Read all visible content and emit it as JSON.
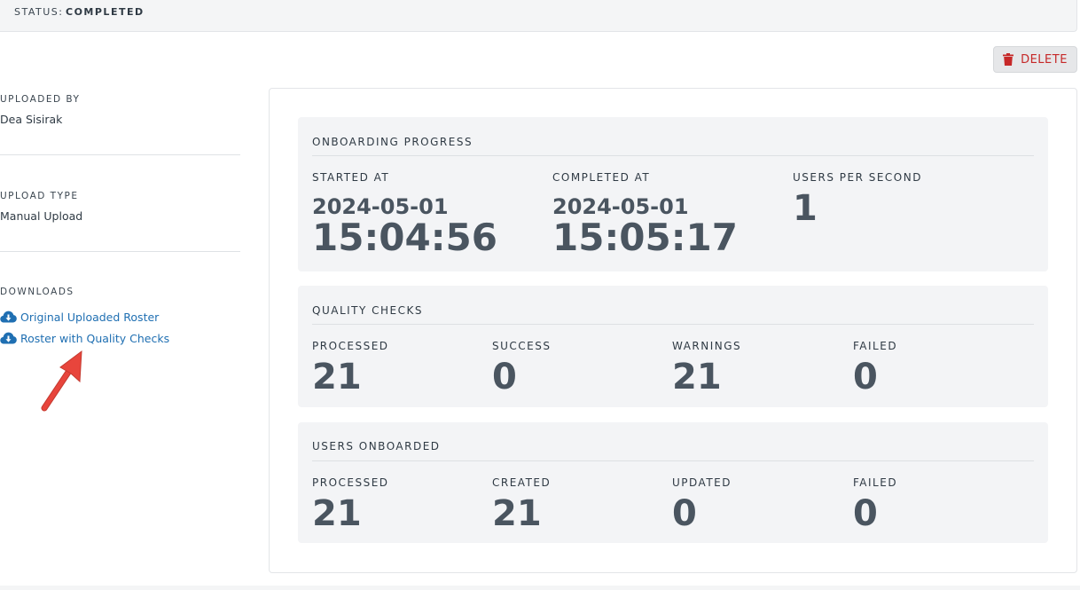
{
  "status": {
    "label": "STATUS:",
    "value": "COMPLETED"
  },
  "actions": {
    "delete_label": "DELETE",
    "delete_color": "#c62828"
  },
  "sidebar": {
    "uploaded_by": {
      "heading": "UPLOADED BY",
      "value": "Dea Sisirak"
    },
    "upload_type": {
      "heading": "UPLOAD TYPE",
      "value": "Manual Upload"
    },
    "downloads": {
      "heading": "DOWNLOADS",
      "links": [
        {
          "label": "Original Uploaded Roster",
          "icon": "cloud-download-icon"
        },
        {
          "label": "Roster with Quality Checks",
          "icon": "cloud-download-icon"
        }
      ]
    },
    "link_color": "#1f6fb2"
  },
  "onboarding_progress": {
    "title": "ONBOARDING PROGRESS",
    "started_at": {
      "label": "STARTED AT",
      "date": "2024-05-01",
      "time": "15:04:56"
    },
    "completed_at": {
      "label": "COMPLETED AT",
      "date": "2024-05-01",
      "time": "15:05:17"
    },
    "users_per_second": {
      "label": "USERS PER SECOND",
      "value": "1"
    }
  },
  "quality_checks": {
    "title": "QUALITY CHECKS",
    "metrics": [
      {
        "label": "PROCESSED",
        "value": "21"
      },
      {
        "label": "SUCCESS",
        "value": "0"
      },
      {
        "label": "WARNINGS",
        "value": "21"
      },
      {
        "label": "FAILED",
        "value": "0"
      }
    ]
  },
  "users_onboarded": {
    "title": "USERS ONBOARDED",
    "metrics": [
      {
        "label": "PROCESSED",
        "value": "21"
      },
      {
        "label": "CREATED",
        "value": "21"
      },
      {
        "label": "UPDATED",
        "value": "0"
      },
      {
        "label": "FAILED",
        "value": "0"
      }
    ]
  },
  "annotation": {
    "icon": "red-arrow-icon",
    "color": "#e8453c"
  }
}
